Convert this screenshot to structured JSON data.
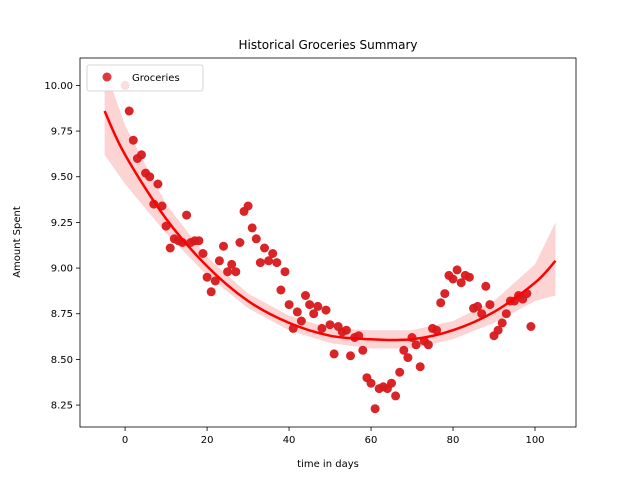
{
  "chart_data": {
    "type": "scatter",
    "title": "Historical Groceries Summary",
    "xlabel": "time in days",
    "ylabel": "Amount Spent",
    "xlim": [
      -11,
      110
    ],
    "ylim": [
      8.13,
      10.15
    ],
    "xticks": [
      0,
      20,
      40,
      60,
      80,
      100
    ],
    "yticks": [
      8.25,
      8.5,
      8.75,
      9.0,
      9.25,
      9.5,
      9.75,
      10.0
    ],
    "ytick_labels": [
      "8.25",
      "8.50",
      "8.75",
      "9.00",
      "9.25",
      "9.50",
      "9.75",
      "10.00"
    ],
    "legend_position": "upper left",
    "grid": false,
    "series": [
      {
        "name": "Groceries",
        "color": "#d7191c",
        "x": [
          0,
          1,
          2,
          3,
          4,
          5,
          6,
          7,
          8,
          9,
          10,
          11,
          12,
          13,
          14,
          15,
          16,
          17,
          18,
          19,
          20,
          21,
          22,
          23,
          24,
          25,
          26,
          27,
          28,
          29,
          30,
          31,
          32,
          33,
          34,
          35,
          36,
          37,
          38,
          39,
          40,
          41,
          42,
          43,
          44,
          45,
          46,
          47,
          48,
          49,
          50,
          51,
          52,
          53,
          54,
          55,
          56,
          57,
          58,
          59,
          60,
          61,
          62,
          63,
          64,
          65,
          66,
          67,
          68,
          69,
          70,
          71,
          72,
          73,
          74,
          75,
          76,
          77,
          78,
          79,
          80,
          81,
          82,
          83,
          84,
          85,
          86,
          87,
          88,
          89,
          90,
          91,
          92,
          93,
          94,
          95,
          96,
          97,
          98,
          99
        ],
        "y": [
          10.0,
          9.86,
          9.7,
          9.6,
          9.62,
          9.52,
          9.5,
          9.35,
          9.46,
          9.34,
          9.23,
          9.11,
          9.16,
          9.15,
          9.14,
          9.29,
          9.14,
          9.15,
          9.15,
          9.08,
          8.95,
          8.87,
          8.93,
          9.04,
          9.12,
          8.98,
          9.02,
          8.98,
          9.14,
          9.31,
          9.34,
          9.22,
          9.16,
          9.03,
          9.11,
          9.04,
          9.08,
          9.03,
          8.88,
          8.98,
          8.8,
          8.67,
          8.76,
          8.71,
          8.85,
          8.8,
          8.75,
          8.79,
          8.67,
          8.77,
          8.69,
          8.53,
          8.68,
          8.65,
          8.66,
          8.52,
          8.62,
          8.63,
          8.55,
          8.4,
          8.37,
          8.23,
          8.34,
          8.35,
          8.34,
          8.37,
          8.3,
          8.43,
          8.55,
          8.51,
          8.62,
          8.58,
          8.46,
          8.6,
          8.58,
          8.67,
          8.66,
          8.81,
          8.86,
          8.96,
          8.94,
          8.99,
          8.92,
          8.96,
          8.95,
          8.78,
          8.79,
          8.75,
          8.9,
          8.8,
          8.63,
          8.66,
          8.7,
          8.75,
          8.82,
          8.82,
          8.85,
          8.83,
          8.86,
          8.68
        ]
      }
    ],
    "fit": {
      "color": "#ff0000",
      "band_color": "#f8a0a0",
      "x": [
        -5,
        0,
        10,
        20,
        30,
        40,
        50,
        60,
        70,
        80,
        90,
        100,
        105
      ],
      "y": [
        9.86,
        9.62,
        9.27,
        9.01,
        8.82,
        8.7,
        8.63,
        8.61,
        8.61,
        8.66,
        8.76,
        8.92,
        9.04
      ],
      "band_low": [
        9.62,
        9.46,
        9.19,
        8.96,
        8.78,
        8.66,
        8.59,
        8.56,
        8.56,
        8.61,
        8.7,
        8.82,
        8.85
      ],
      "band_high": [
        10.1,
        9.78,
        9.35,
        9.06,
        8.86,
        8.74,
        8.67,
        8.66,
        8.66,
        8.71,
        8.82,
        9.02,
        9.25
      ]
    }
  }
}
